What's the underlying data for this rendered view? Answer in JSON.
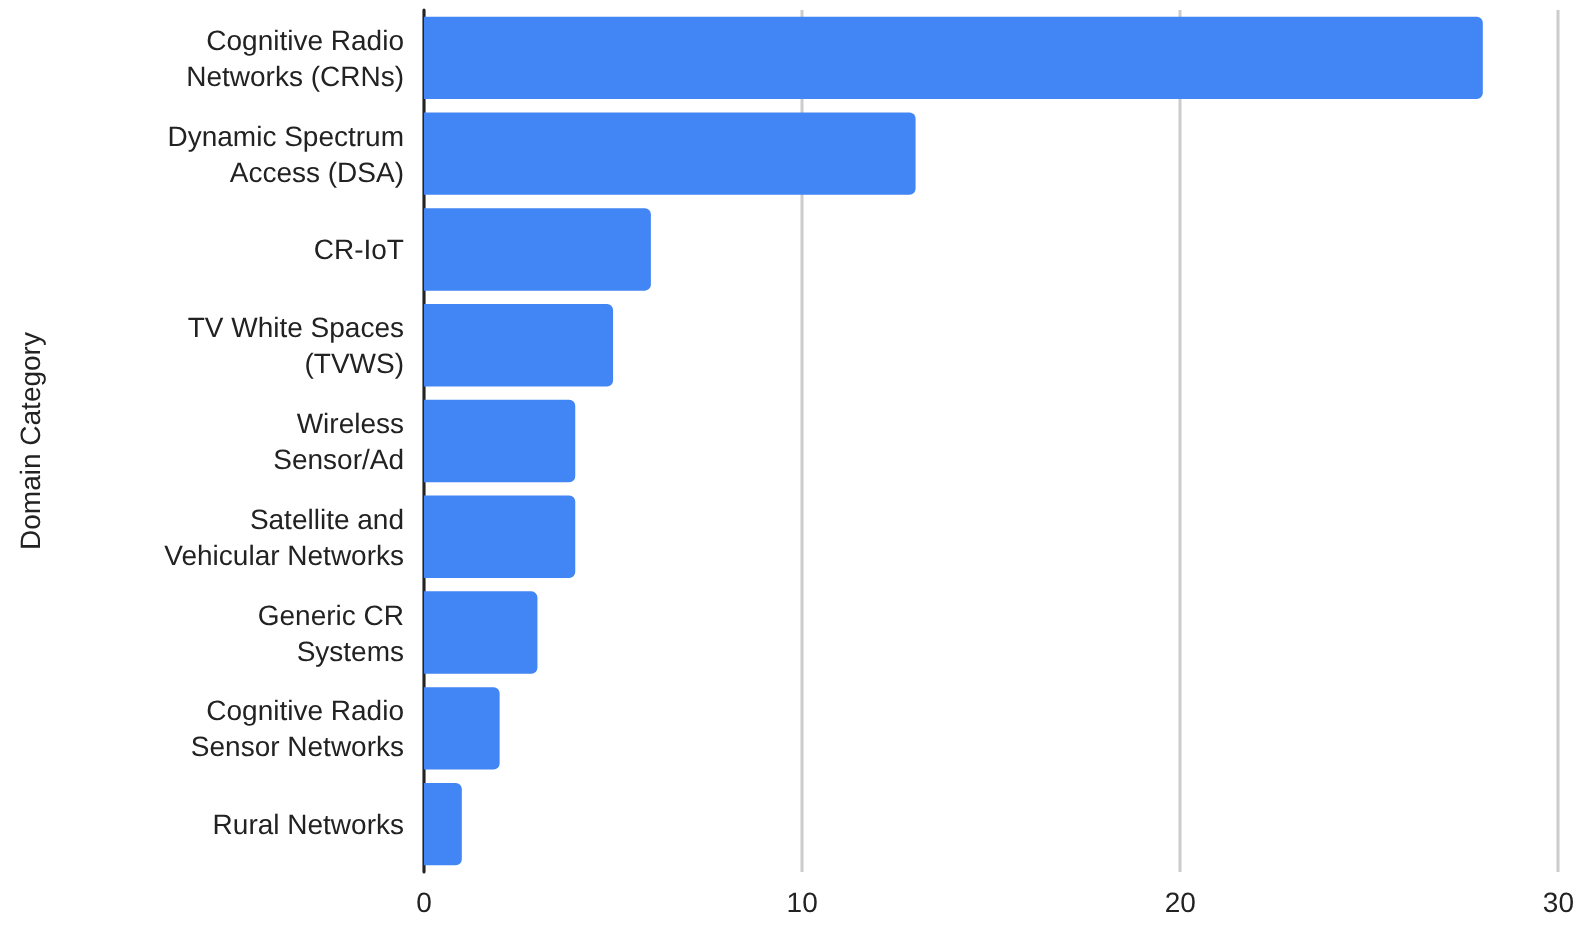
{
  "chart_data": {
    "type": "bar",
    "orientation": "horizontal",
    "ylabel": "Domain Category",
    "categories": [
      "Cognitive Radio\nNetworks (CRNs)",
      "Dynamic Spectrum\nAccess (DSA)",
      "CR-IoT",
      "TV White Spaces\n(TVWS)",
      "Wireless\nSensor/Ad",
      "Satellite and\nVehicular Networks",
      "Generic CR\nSystems",
      "Cognitive Radio\nSensor Networks",
      "Rural Networks"
    ],
    "values": [
      28,
      13,
      6,
      5,
      4,
      4,
      3,
      2,
      1
    ],
    "color": "#4285f4",
    "xlim": [
      0,
      30
    ],
    "xticks": [
      0,
      10,
      20,
      30
    ],
    "grid": "x"
  }
}
